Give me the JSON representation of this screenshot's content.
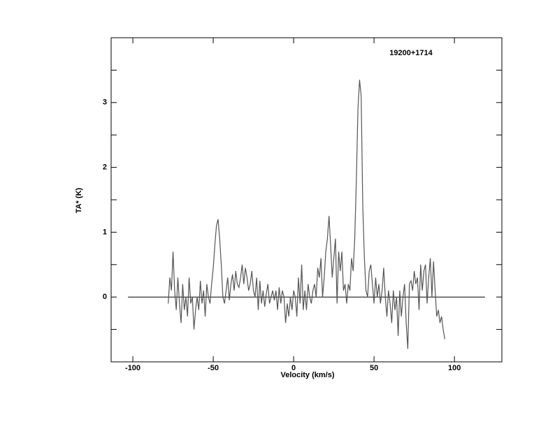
{
  "chart_data": {
    "type": "line",
    "title": "19200+1714",
    "x_label": "Velocity (km/s)",
    "y_label": "TA* (K)",
    "x": [
      -78,
      -77,
      -76,
      -75,
      -74,
      -73,
      -72,
      -71,
      -70,
      -69,
      -68,
      -67,
      -66,
      -65,
      -64,
      -63,
      -62,
      -61,
      -60,
      -59,
      -58,
      -57,
      -56,
      -55,
      -54,
      -53,
      -52,
      -51,
      -50,
      -49,
      -48,
      -47,
      -46,
      -45,
      -44,
      -43,
      -42,
      -41,
      -40,
      -39,
      -38,
      -37,
      -36,
      -35,
      -34,
      -33,
      -32,
      -31,
      -30,
      -29,
      -28,
      -27,
      -26,
      -25,
      -24,
      -23,
      -22,
      -21,
      -20,
      -19,
      -18,
      -17,
      -16,
      -15,
      -14,
      -13,
      -12,
      -11,
      -10,
      -9,
      -8,
      -7,
      -6,
      -5,
      -4,
      -3,
      -2,
      -1,
      0,
      1,
      2,
      3,
      4,
      5,
      6,
      7,
      8,
      9,
      10,
      11,
      12,
      13,
      14,
      15,
      16,
      17,
      18,
      19,
      20,
      21,
      22,
      23,
      24,
      25,
      26,
      27,
      28,
      29,
      30,
      31,
      32,
      33,
      34,
      35,
      36,
      37,
      38,
      39,
      40,
      41,
      42,
      43,
      44,
      45,
      46,
      47,
      48,
      49,
      50,
      51,
      52,
      53,
      54,
      55,
      56,
      57,
      58,
      59,
      60,
      61,
      62,
      63,
      64,
      65,
      66,
      67,
      68,
      69,
      70,
      71,
      72,
      73,
      74,
      75,
      76,
      77,
      78,
      79,
      80,
      81,
      82,
      83,
      84,
      85,
      86,
      87,
      88,
      89,
      90,
      91,
      92,
      93,
      94
    ],
    "series": [
      {
        "color": "#555555",
        "values": [
          -0.1,
          0.3,
          0.1,
          0.7,
          0.1,
          -0.2,
          0.3,
          -0.1,
          -0.4,
          0.2,
          -0.2,
          0.0,
          -0.3,
          0.3,
          -0.1,
          0.0,
          -0.5,
          -0.2,
          0.0,
          -0.2,
          0.25,
          -0.1,
          0.1,
          -0.3,
          0.2,
          0.0,
          -0.1,
          0.2,
          0.45,
          0.8,
          1.1,
          1.2,
          0.9,
          0.5,
          0.0,
          -0.1,
          0.1,
          0.3,
          -0.05,
          0.2,
          0.35,
          0.1,
          0.4,
          0.2,
          0.15,
          0.3,
          0.5,
          0.2,
          0.45,
          0.3,
          0.1,
          0.2,
          0.4,
          0.1,
          0.0,
          0.3,
          -0.2,
          0.25,
          -0.1,
          0.1,
          -0.15,
          0.05,
          0.2,
          -0.1,
          0.0,
          0.1,
          -0.05,
          0.1,
          -0.2,
          0.15,
          -0.1,
          0.1,
          0.0,
          -0.4,
          -0.1,
          -0.3,
          0.0,
          -0.2,
          0.1,
          0.0,
          -0.3,
          0.3,
          -0.1,
          0.5,
          -0.2,
          0.1,
          -0.2,
          0.2,
          0.0,
          -0.1,
          0.1,
          0.2,
          0.0,
          0.45,
          0.3,
          0.6,
          0.0,
          0.3,
          0.7,
          0.9,
          1.25,
          0.8,
          0.3,
          0.6,
          0.9,
          -0.1,
          0.7,
          0.4,
          0.7,
          0.1,
          0.2,
          -0.1,
          0.2,
          0.1,
          0.6,
          0.4,
          0.9,
          1.8,
          2.9,
          3.35,
          3.1,
          1.4,
          0.6,
          0.1,
          0.0,
          0.4,
          0.5,
          0.2,
          -0.1,
          0.3,
          0.0,
          0.2,
          -0.1,
          0.1,
          0.45,
          0.0,
          -0.3,
          0.1,
          -0.1,
          -0.4,
          0.1,
          -0.2,
          0.0,
          -0.6,
          0.1,
          -0.3,
          0.0,
          0.2,
          -0.4,
          -0.8,
          0.2,
          0.25,
          0.1,
          0.4,
          0.2,
          0.3,
          -0.2,
          0.5,
          0.1,
          0.4,
          0.5,
          -0.1,
          0.3,
          0.6,
          0.0,
          0.55,
          0.1,
          -0.3,
          -0.2,
          -0.4,
          -0.3,
          -0.5,
          -0.65
        ]
      }
    ],
    "hline": {
      "y": 0,
      "x": [
        -103,
        119
      ]
    },
    "xlim": [
      -113.5,
      129.5
    ],
    "ylim": [
      -1,
      4
    ],
    "xticks": [
      -100,
      -50,
      0,
      50,
      100
    ],
    "yticks": [
      0,
      1,
      2,
      3
    ],
    "yminor": [
      -0.5,
      0.5,
      1.5,
      2.5,
      3.5
    ]
  }
}
